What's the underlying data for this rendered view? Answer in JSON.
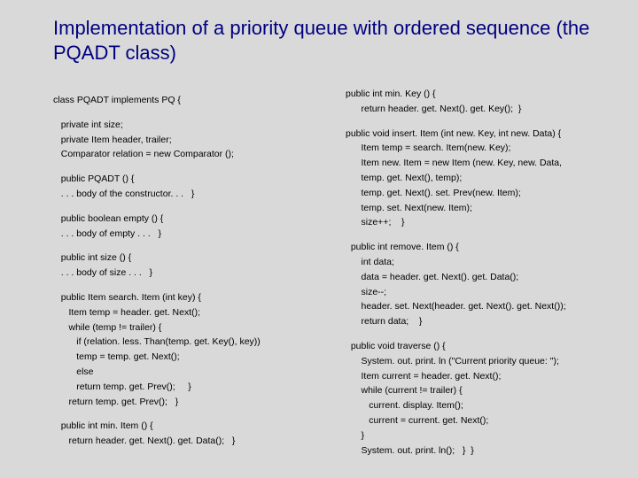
{
  "title": "Implementation of a priority queue with ordered sequence (the PQADT class)",
  "left": {
    "b1": "class PQADT implements PQ {",
    "b2": "   private int size;\n   private Item header, trailer;\n   Comparator relation = new Comparator ();",
    "b3": "   public PQADT () {\n   . . . body of the constructor. . .   }",
    "b4": "   public boolean empty () {\n   . . . body of empty . . .   }",
    "b5": "   public int size () {\n   . . . body of size . . .   }",
    "b6": "   public Item search. Item (int key) {\n      Item temp = header. get. Next();\n      while (temp != trailer) {\n         if (relation. less. Than(temp. get. Key(), key))\n         temp = temp. get. Next();\n         else\n         return temp. get. Prev();     }\n      return temp. get. Prev();   }",
    "b7": "   public int min. Item () {\n      return header. get. Next(). get. Data();   }"
  },
  "right": {
    "b1": "public int min. Key () {\n      return header. get. Next(). get. Key();  }",
    "b2": "public void insert. Item (int new. Key, int new. Data) {\n      Item temp = search. Item(new. Key);\n      Item new. Item = new Item (new. Key, new. Data,\n      temp. get. Next(), temp);\n      temp. get. Next(). set. Prev(new. Item);\n      temp. set. Next(new. Item);\n      size++;    }",
    "b3": "  public int remove. Item () {\n      int data;\n      data = header. get. Next(). get. Data();\n      size--;\n      header. set. Next(header. get. Next(). get. Next());\n      return data;    }",
    "b4": "  public void traverse () {\n      System. out. print. ln (\"Current priority queue: \");\n      Item current = header. get. Next();\n      while (current != trailer) {\n         current. display. Item();\n         current = current. get. Next();\n      }\n      System. out. print. ln();   }  }"
  },
  "colors": {
    "background": "#d9d9d9",
    "title": "#000080",
    "text": "#000000"
  },
  "fontsize": {
    "title": 22,
    "code": 10.5
  }
}
